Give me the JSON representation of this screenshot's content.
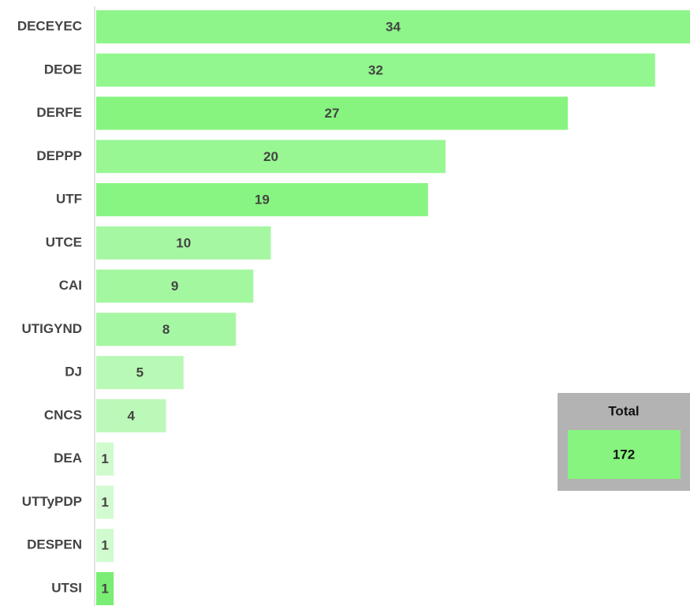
{
  "chart_data": {
    "type": "hbar",
    "categories": [
      "DECEYEC",
      "DEOE",
      "DERFE",
      "DEPPP",
      "UTF",
      "UTCE",
      "CAI",
      "UTIGYND",
      "DJ",
      "CNCS",
      "DEA",
      "UTTyPDP",
      "DESPEN",
      "UTSI"
    ],
    "values": [
      34,
      32,
      27,
      20,
      19,
      10,
      9,
      8,
      5,
      4,
      1,
      1,
      1,
      1
    ],
    "colors": [
      "#8ef58a",
      "#92f78e",
      "#86f47f",
      "#98f693",
      "#88f582",
      "#a6f7a2",
      "#a3f79f",
      "#a6f7a3",
      "#b8f9b5",
      "#bcf9b9",
      "#cffbcd",
      "#d3fbd1",
      "#d0fbce",
      "#7aee74"
    ],
    "xlim": [
      0,
      34
    ],
    "total": {
      "label": "Total",
      "value": 172
    }
  }
}
